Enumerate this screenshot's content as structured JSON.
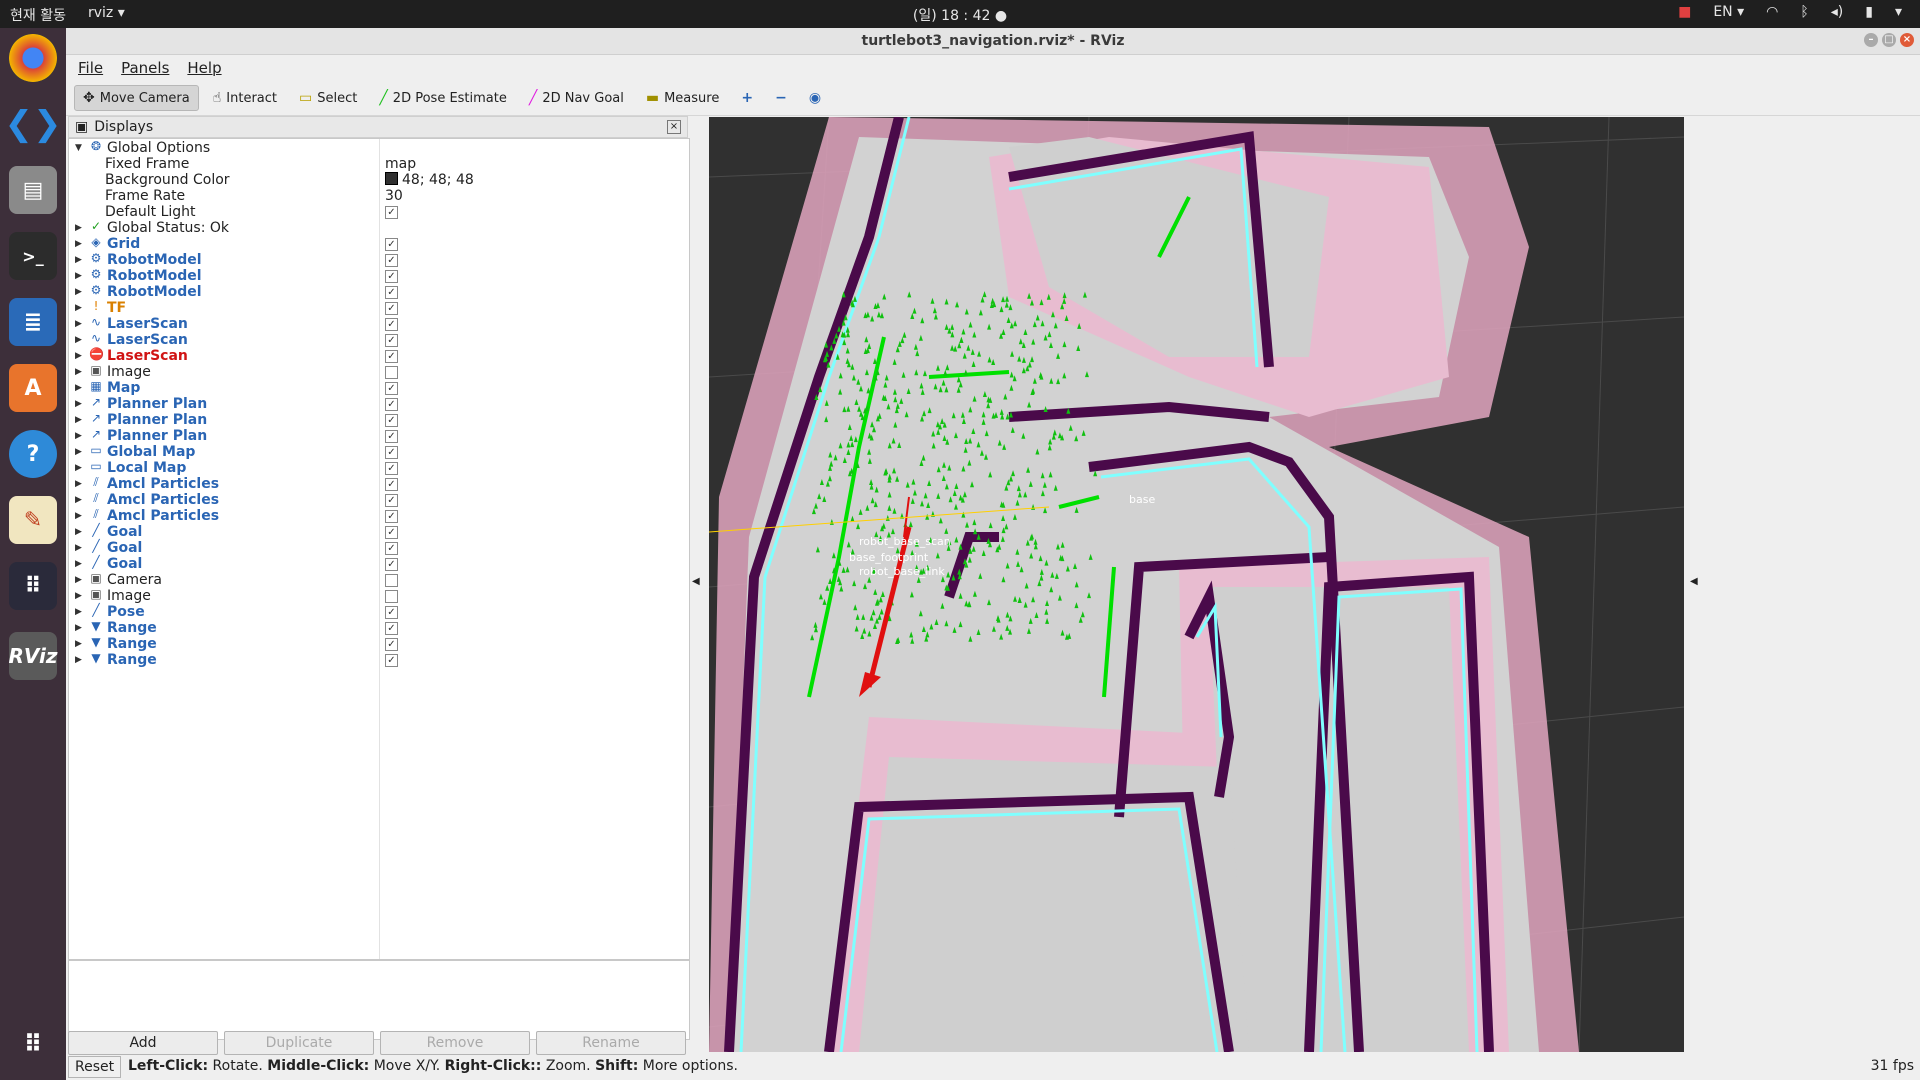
{
  "topbar": {
    "activities": "현재 활동",
    "app": "rviz ▾",
    "clock": "(일) 18 : 42 ●",
    "lang": "EN ▾"
  },
  "window": {
    "title": "turtlebot3_navigation.rviz* - RViz"
  },
  "menu": {
    "file": "File",
    "panels": "Panels",
    "help": "Help"
  },
  "toolbar": {
    "move_camera": "Move Camera",
    "interact": "Interact",
    "select": "Select",
    "pose_estimate": "2D Pose Estimate",
    "nav_goal": "2D Nav Goal",
    "measure": "Measure"
  },
  "displays": {
    "title": "Displays",
    "global_options": "Global Options",
    "fixed_frame_label": "Fixed Frame",
    "fixed_frame_value": "map",
    "bg_color_label": "Background Color",
    "bg_color_value": "48; 48; 48",
    "frame_rate_label": "Frame Rate",
    "frame_rate_value": "30",
    "default_light_label": "Default Light",
    "global_status": "Global Status: Ok",
    "items": [
      {
        "label": "Grid",
        "style": "blue",
        "icon": "◈",
        "checked": true
      },
      {
        "label": "RobotModel",
        "style": "blue",
        "icon": "⚙",
        "checked": true
      },
      {
        "label": "RobotModel",
        "style": "blue",
        "icon": "⚙",
        "checked": true
      },
      {
        "label": "RobotModel",
        "style": "blue",
        "icon": "⚙",
        "checked": true
      },
      {
        "label": "TF",
        "style": "orange",
        "icon": "!",
        "checked": true
      },
      {
        "label": "LaserScan",
        "style": "blue",
        "icon": "∿",
        "checked": true
      },
      {
        "label": "LaserScan",
        "style": "blue",
        "icon": "∿",
        "checked": true
      },
      {
        "label": "LaserScan",
        "style": "red",
        "icon": "⛔",
        "checked": true
      },
      {
        "label": "Image",
        "style": "",
        "icon": "▣",
        "checked": false
      },
      {
        "label": "Map",
        "style": "blue",
        "icon": "▦",
        "checked": true
      },
      {
        "label": "Planner Plan",
        "style": "blue",
        "icon": "↗",
        "checked": true
      },
      {
        "label": "Planner Plan",
        "style": "blue",
        "icon": "↗",
        "checked": true
      },
      {
        "label": "Planner Plan",
        "style": "blue",
        "icon": "↗",
        "checked": true
      },
      {
        "label": "Global Map",
        "style": "blue",
        "icon": "▭",
        "checked": true
      },
      {
        "label": "Local Map",
        "style": "blue",
        "icon": "▭",
        "checked": true
      },
      {
        "label": "Amcl Particles",
        "style": "blue",
        "icon": "⫽",
        "checked": true
      },
      {
        "label": "Amcl Particles",
        "style": "blue",
        "icon": "⫽",
        "checked": true
      },
      {
        "label": "Amcl Particles",
        "style": "blue",
        "icon": "⫽",
        "checked": true
      },
      {
        "label": "Goal",
        "style": "blue",
        "icon": "╱",
        "checked": true
      },
      {
        "label": "Goal",
        "style": "blue",
        "icon": "╱",
        "checked": true
      },
      {
        "label": "Goal",
        "style": "blue",
        "icon": "╱",
        "checked": true
      },
      {
        "label": "Camera",
        "style": "",
        "icon": "▣",
        "checked": false
      },
      {
        "label": "Image",
        "style": "",
        "icon": "▣",
        "checked": false
      },
      {
        "label": "Pose",
        "style": "blue",
        "icon": "╱",
        "checked": true
      },
      {
        "label": "Range",
        "style": "blue",
        "icon": "▼",
        "checked": true
      },
      {
        "label": "Range",
        "style": "blue",
        "icon": "▼",
        "checked": true
      },
      {
        "label": "Range",
        "style": "blue",
        "icon": "▼",
        "checked": true
      }
    ]
  },
  "buttons": {
    "add": "Add",
    "duplicate": "Duplicate",
    "remove": "Remove",
    "rename": "Rename"
  },
  "status": {
    "reset": "Reset",
    "hint_lc": "Left-Click:",
    "hint_lc_v": " Rotate. ",
    "hint_mc": "Middle-Click:",
    "hint_mc_v": " Move X/Y. ",
    "hint_rc": "Right-Click::",
    "hint_rc_v": " Zoom. ",
    "hint_sh": "Shift:",
    "hint_sh_v": " More options.",
    "fps": "31 fps"
  },
  "viewport": {
    "labels": [
      "base",
      "robot_base_scan",
      "base_footprint",
      "robot_base_link"
    ],
    "colors": {
      "bg": "#303030",
      "free": "#cccccc",
      "inflation": "#e8a8c0",
      "lethal": "#4a0a4a",
      "edge": "#7fffff",
      "laser": "#00e000",
      "goal": "#e01010"
    }
  }
}
